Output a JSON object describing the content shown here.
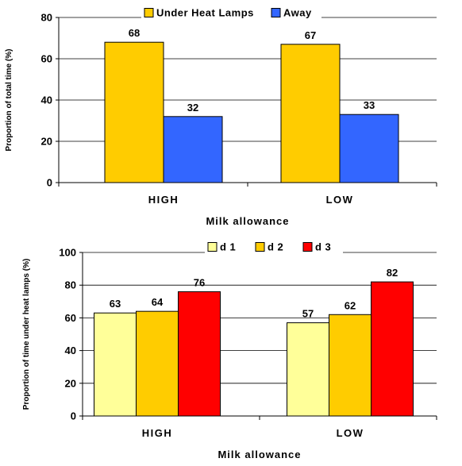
{
  "chart_data": [
    {
      "type": "bar",
      "categories": [
        "HIGH",
        "LOW"
      ],
      "series": [
        {
          "name": "Under Heat Lamps",
          "values": [
            68,
            67
          ],
          "color": "#FFCC00"
        },
        {
          "name": "Away",
          "values": [
            32,
            33
          ],
          "color": "#3366FF"
        }
      ],
      "xlabel": "Milk allowance",
      "ylabel": "Proportion of total time (%)",
      "ylim": [
        0,
        80
      ],
      "yticks": [
        0,
        20,
        40,
        60,
        80
      ],
      "grid": true,
      "legend_position": "top"
    },
    {
      "type": "bar",
      "categories": [
        "HIGH",
        "LOW"
      ],
      "series": [
        {
          "name": "d 1",
          "values": [
            63,
            57
          ],
          "color": "#FFFF99"
        },
        {
          "name": "d 2",
          "values": [
            64,
            62
          ],
          "color": "#FFCC00"
        },
        {
          "name": "d 3",
          "values": [
            76,
            82
          ],
          "color": "#FF0000"
        }
      ],
      "xlabel": "Milk allowance",
      "ylabel": "Proportion of time under heat lamps (%)",
      "ylim": [
        0,
        100
      ],
      "yticks": [
        0,
        20,
        40,
        60,
        80,
        100
      ],
      "grid": true,
      "legend_position": "top"
    }
  ]
}
